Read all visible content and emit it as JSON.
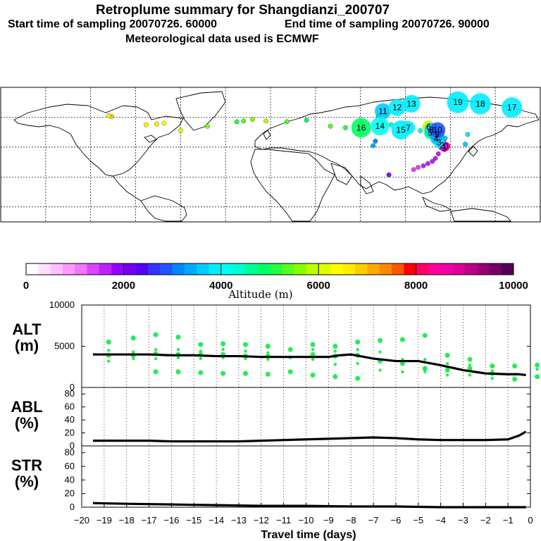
{
  "title": {
    "line1": "Retroplume summary for Shangdianzi_200707",
    "line2_start": "Start time of sampling 20070726. 60000",
    "line2_end": "End time of sampling 20070726. 90000",
    "line3": "Meteorological data used is ECMWF"
  },
  "chart_data": [
    {
      "type": "scatter",
      "name": "retroplume-map",
      "description_note": "plume centroid positions labelled by days before sampling; colour = altitude",
      "points": [
        {
          "lon": 117.1,
          "lat": 40.6,
          "label": "0",
          "alt": 8200
        },
        {
          "lon": 116.0,
          "lat": 39.8,
          "label": "1",
          "alt": 8600
        },
        {
          "lon": 114.5,
          "lat": 41.2,
          "label": "2",
          "alt": 1700
        },
        {
          "lon": 112.5,
          "lat": 43.0,
          "label": "3",
          "alt": 3800
        },
        {
          "lon": 110.5,
          "lat": 45.5,
          "label": "4",
          "alt": 3700
        },
        {
          "lon": 106.5,
          "lat": 49.5,
          "label": "5",
          "alt": 4900
        },
        {
          "lon": 105.5,
          "lat": 53.5,
          "label": "6",
          "alt": 5900
        },
        {
          "lon": 92.0,
          "lat": 53.0,
          "label": "7",
          "alt": 3800
        },
        {
          "lon": 107.5,
          "lat": 51.5,
          "label": "8",
          "alt": 3600
        },
        {
          "lon": 111.0,
          "lat": 48.5,
          "label": "9",
          "alt": 3400
        },
        {
          "lon": 111.5,
          "lat": 51.5,
          "label": "10",
          "alt": 2800
        },
        {
          "lon": 75.0,
          "lat": 64.0,
          "label": "11",
          "alt": 3700
        },
        {
          "lon": 84.5,
          "lat": 66.5,
          "label": "12",
          "alt": 3800
        },
        {
          "lon": 94.0,
          "lat": 69.0,
          "label": "13",
          "alt": 3900
        },
        {
          "lon": 73.0,
          "lat": 54.0,
          "label": "14",
          "alt": 4200
        },
        {
          "lon": 87.0,
          "lat": 51.5,
          "label": "15",
          "alt": 3800
        },
        {
          "lon": 60.5,
          "lat": 53.0,
          "label": "16",
          "alt": 4800
        },
        {
          "lon": 161.0,
          "lat": 66.5,
          "label": "17",
          "alt": 3900
        },
        {
          "lon": 140.0,
          "lat": 69.0,
          "label": "18",
          "alt": 3800
        },
        {
          "lon": 125.0,
          "lat": 70.0,
          "label": "19",
          "alt": 3900
        }
      ],
      "trail_points": [
        {
          "lon": 95.5,
          "lat": 25.0,
          "alt": 1300
        },
        {
          "lon": 98.5,
          "lat": 26.5,
          "alt": 1400
        },
        {
          "lon": 102.0,
          "lat": 27.5,
          "alt": 1500
        },
        {
          "lon": 105.0,
          "lat": 29.0,
          "alt": 1600
        },
        {
          "lon": 108.0,
          "lat": 30.5,
          "alt": 1600
        },
        {
          "lon": 110.0,
          "lat": 32.5,
          "alt": 1700
        },
        {
          "lon": 112.0,
          "lat": 35.5,
          "alt": 1600
        },
        {
          "lon": 79.0,
          "lat": 21.5,
          "alt": 1800
        },
        {
          "lon": 70.0,
          "lat": 44.0,
          "alt": 3100
        },
        {
          "lon": 68.5,
          "lat": 41.0,
          "alt": 3300
        },
        {
          "lon": 50.0,
          "lat": 53.0,
          "alt": 5200
        },
        {
          "lon": 40.0,
          "lat": 54.0,
          "alt": 5300
        },
        {
          "lon": 24.0,
          "lat": 58.0,
          "alt": 4900
        },
        {
          "lon": 11.0,
          "lat": 57.0,
          "alt": 5400
        },
        {
          "lon": -3.0,
          "lat": 57.5,
          "alt": 5800
        },
        {
          "lon": -12.0,
          "lat": 58.5,
          "alt": 5700
        },
        {
          "lon": -22.5,
          "lat": 57.0,
          "alt": 5100
        },
        {
          "lon": -18.0,
          "lat": 57.5,
          "alt": 5300
        },
        {
          "lon": -42.0,
          "lat": 54.0,
          "alt": 5600
        },
        {
          "lon": -60.0,
          "lat": 51.0,
          "alt": 6000
        },
        {
          "lon": -71.0,
          "lat": 56.0,
          "alt": 6300
        },
        {
          "lon": -76.0,
          "lat": 55.5,
          "alt": 6500
        },
        {
          "lon": -83.0,
          "lat": 55.0,
          "alt": 6600
        },
        {
          "lon": -106.0,
          "lat": 60.5,
          "alt": 6800
        },
        {
          "lon": -108.0,
          "lat": 61.0,
          "alt": 6600
        },
        {
          "lon": 77.0,
          "lat": 62.0,
          "alt": 5200
        },
        {
          "lon": 72.0,
          "lat": 61.0,
          "alt": 5000
        },
        {
          "lon": 80.5,
          "lat": 55.0,
          "alt": 4400
        },
        {
          "lon": 100.0,
          "lat": 51.0,
          "alt": 4300
        },
        {
          "lon": 115.5,
          "lat": 44.0,
          "alt": 3700
        },
        {
          "lon": 116.5,
          "lat": 46.0,
          "alt": 3500
        },
        {
          "lon": 131.5,
          "lat": 48.5,
          "alt": 3800
        },
        {
          "lon": 130.0,
          "lat": 42.0,
          "alt": 3500
        }
      ],
      "map_bounds": {
        "lon": [
          -180,
          180
        ],
        "lat": [
          -10,
          80
        ]
      }
    },
    {
      "type": "colorbar",
      "name": "altitude-colorbar",
      "xlabel": "Altitude (m)",
      "ticks": [
        0,
        2000,
        4000,
        6000,
        8000,
        10000
      ],
      "tick_labels": [
        "0",
        "2000",
        "4000",
        "6000",
        "8000",
        "10000"
      ],
      "range": [
        0,
        10000
      ],
      "colors": [
        "#ffffff",
        "#ffe0ff",
        "#ffc0ff",
        "#ff99ff",
        "#ee77ff",
        "#dd44ff",
        "#bb22ff",
        "#9900ff",
        "#7700ee",
        "#5500ee",
        "#3333ff",
        "#2255ff",
        "#0088ff",
        "#00aaff",
        "#00ccff",
        "#00eeff",
        "#00ffee",
        "#00ffcc",
        "#00ff99",
        "#00ff66",
        "#22ff44",
        "#55ff22",
        "#88ff00",
        "#bbff00",
        "#ddff00",
        "#ffff00",
        "#ffee00",
        "#ffcc00",
        "#ffaa00",
        "#ff8800",
        "#ff5500",
        "#ff0000",
        "#ff0066",
        "#ff0099",
        "#ee00aa",
        "#dd0099",
        "#bb0088",
        "#990077",
        "#770066",
        "#550055"
      ]
    },
    {
      "type": "line",
      "name": "alt-panel",
      "ylabel": "ALT\n(m)",
      "ylabel_line1": "ALT",
      "ylabel_line2": "(m)",
      "ylim": [
        0,
        10000
      ],
      "yticks": [
        0,
        5000,
        10000
      ],
      "ytick_labels": [
        "0",
        "5000",
        "10000"
      ],
      "x": [
        -19.5,
        -19,
        -18,
        -17,
        -16,
        -15,
        -14,
        -13,
        -12,
        -11,
        -10,
        -9,
        -8.5,
        -8,
        -7,
        -6,
        -5,
        -4,
        -3,
        -2,
        -1,
        -0.5,
        -0.2
      ],
      "y": [
        4000,
        4000,
        4000,
        4000,
        3900,
        3900,
        3800,
        3800,
        3700,
        3700,
        3700,
        3700,
        3900,
        4000,
        3500,
        3200,
        3200,
        2700,
        2100,
        1700,
        1600,
        1600,
        1500
      ],
      "scatter": [
        {
          "x": -18.8,
          "y": [
            5500,
            4500,
            3900,
            3200
          ]
        },
        {
          "x": -17.7,
          "y": [
            6000,
            4300,
            3900,
            3500
          ]
        },
        {
          "x": -16.7,
          "y": [
            6400,
            4600,
            4100,
            3500,
            1900
          ]
        },
        {
          "x": -15.7,
          "y": [
            6100,
            4600,
            4000,
            3600,
            1900
          ]
        },
        {
          "x": -14.7,
          "y": [
            5200,
            4400,
            4000,
            3500,
            1800
          ]
        },
        {
          "x": -13.7,
          "y": [
            5300,
            4600,
            4000,
            3600,
            1700
          ]
        },
        {
          "x": -12.7,
          "y": [
            5200,
            4400,
            3800,
            3500,
            1700
          ]
        },
        {
          "x": -11.7,
          "y": [
            5000,
            4200,
            3800,
            3400,
            1600
          ]
        },
        {
          "x": -10.7,
          "y": [
            4600,
            3600,
            1900
          ]
        },
        {
          "x": -9.7,
          "y": [
            5200,
            4600,
            4000,
            3400,
            1500
          ]
        },
        {
          "x": -8.7,
          "y": [
            5000,
            4400,
            3800,
            2800,
            1300
          ]
        },
        {
          "x": -7.7,
          "y": [
            5500,
            4600,
            3900,
            2900,
            1100
          ]
        },
        {
          "x": -6.7,
          "y": [
            5700,
            4300,
            3200,
            2100
          ]
        },
        {
          "x": -5.7,
          "y": [
            5800,
            3400,
            2900,
            1900
          ]
        },
        {
          "x": -4.7,
          "y": [
            6300,
            3400,
            2300,
            1900
          ]
        },
        {
          "x": -3.7,
          "y": [
            3900,
            2900,
            2100,
            1500
          ]
        },
        {
          "x": -2.7,
          "y": [
            3400,
            2700,
            2300,
            1500
          ]
        },
        {
          "x": -1.7,
          "y": [
            2600,
            2000,
            1700,
            1100
          ]
        },
        {
          "x": -0.7,
          "y": [
            2600,
            1600,
            1000
          ]
        },
        {
          "x": 0.3,
          "y": [
            2700,
            2200,
            1300
          ]
        }
      ]
    },
    {
      "type": "line",
      "name": "abl-panel",
      "ylabel_line1": "ABL",
      "ylabel_line2": "(%)",
      "ylim": [
        0,
        90
      ],
      "yticks": [
        0,
        20,
        40,
        60,
        80
      ],
      "ytick_labels": [
        "0",
        "20",
        "40",
        "60",
        "80"
      ],
      "x": [
        -19.5,
        -19,
        -18,
        -17,
        -16,
        -15,
        -14,
        -13,
        -12,
        -11,
        -10,
        -9,
        -8,
        -7,
        -6,
        -5,
        -4,
        -3,
        -2,
        -1,
        -0.5,
        -0.2
      ],
      "y": [
        8,
        8,
        8,
        8,
        7,
        7,
        7,
        7,
        8,
        9,
        10,
        11,
        12,
        13,
        12,
        10,
        9,
        9,
        9,
        10,
        16,
        22
      ]
    },
    {
      "type": "line",
      "name": "str-panel",
      "ylabel_line1": "STR",
      "ylabel_line2": "(%)",
      "ylim": [
        0,
        90
      ],
      "yticks": [
        0,
        20,
        40,
        60,
        80
      ],
      "ytick_labels": [
        "0",
        "20",
        "40",
        "60",
        "80"
      ],
      "xlabel": "Travel time (days)",
      "xlim": [
        -20,
        0
      ],
      "xticks": [
        -20,
        -19,
        -18,
        -17,
        -16,
        -15,
        -14,
        -13,
        -12,
        -11,
        -10,
        -9,
        -8,
        -7,
        -6,
        -5,
        -4,
        -3,
        -2,
        -1,
        0
      ],
      "xtick_labels": [
        "−20",
        "−19",
        "−18",
        "−17",
        "−16",
        "−15",
        "−14",
        "−13",
        "−12",
        "−11",
        "−10",
        "−9",
        "−8",
        "−7",
        "−6",
        "−5",
        "−4",
        "−3",
        "−2",
        "−1",
        "0"
      ],
      "x": [
        -19.5,
        -18,
        -16,
        -14,
        -12,
        -10,
        -8,
        -6,
        -4,
        -2,
        -0.2
      ],
      "y": [
        6,
        5,
        4,
        3,
        2,
        2,
        1,
        1,
        0,
        0,
        0
      ]
    }
  ]
}
